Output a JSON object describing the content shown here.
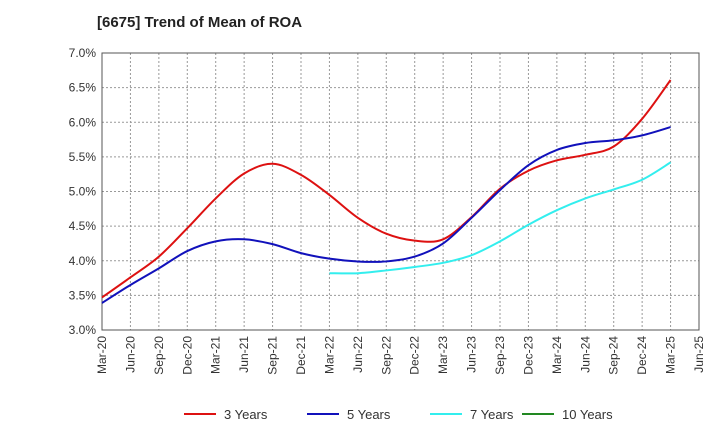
{
  "chart_data": {
    "type": "line",
    "title": "[6675]  Trend of Mean of ROA",
    "xlabel": "",
    "ylabel": "",
    "ylim": [
      3.0,
      7.0
    ],
    "y_ticks": [
      "3.0%",
      "3.5%",
      "4.0%",
      "4.5%",
      "5.0%",
      "5.5%",
      "6.0%",
      "6.5%",
      "7.0%"
    ],
    "y_tick_values": [
      3.0,
      3.5,
      4.0,
      4.5,
      5.0,
      5.5,
      6.0,
      6.5,
      7.0
    ],
    "x": [
      "Mar-20",
      "Jun-20",
      "Sep-20",
      "Dec-20",
      "Mar-21",
      "Jun-21",
      "Sep-21",
      "Dec-21",
      "Mar-22",
      "Jun-22",
      "Sep-22",
      "Dec-22",
      "Mar-23",
      "Jun-23",
      "Sep-23",
      "Dec-23",
      "Mar-24",
      "Jun-24",
      "Sep-24",
      "Dec-24",
      "Mar-25",
      "Jun-25"
    ],
    "grid": true,
    "legend_position": "bottom",
    "series": [
      {
        "name": "3 Years",
        "color": "#dd1111",
        "values": [
          3.47,
          3.76,
          4.06,
          4.47,
          4.9,
          5.26,
          5.4,
          5.24,
          4.95,
          4.62,
          4.39,
          4.29,
          4.31,
          4.63,
          5.04,
          5.3,
          5.45,
          5.53,
          5.65,
          6.05,
          6.61,
          null
        ]
      },
      {
        "name": "5 Years",
        "color": "#1111bb",
        "values": [
          3.39,
          3.65,
          3.89,
          4.14,
          4.28,
          4.31,
          4.24,
          4.11,
          4.03,
          3.99,
          3.99,
          4.06,
          4.25,
          4.62,
          5.02,
          5.38,
          5.6,
          5.7,
          5.74,
          5.81,
          5.93,
          null
        ]
      },
      {
        "name": "7 Years",
        "color": "#33eeee",
        "values": [
          null,
          null,
          null,
          null,
          null,
          null,
          null,
          null,
          3.82,
          3.82,
          3.86,
          3.91,
          3.97,
          4.08,
          4.28,
          4.52,
          4.73,
          4.9,
          5.03,
          5.17,
          5.42,
          null
        ]
      },
      {
        "name": "10 Years",
        "color": "#228822",
        "values": [
          null,
          null,
          null,
          null,
          null,
          null,
          null,
          null,
          null,
          null,
          null,
          null,
          null,
          null,
          null,
          null,
          null,
          null,
          null,
          null,
          null,
          null
        ]
      }
    ]
  }
}
